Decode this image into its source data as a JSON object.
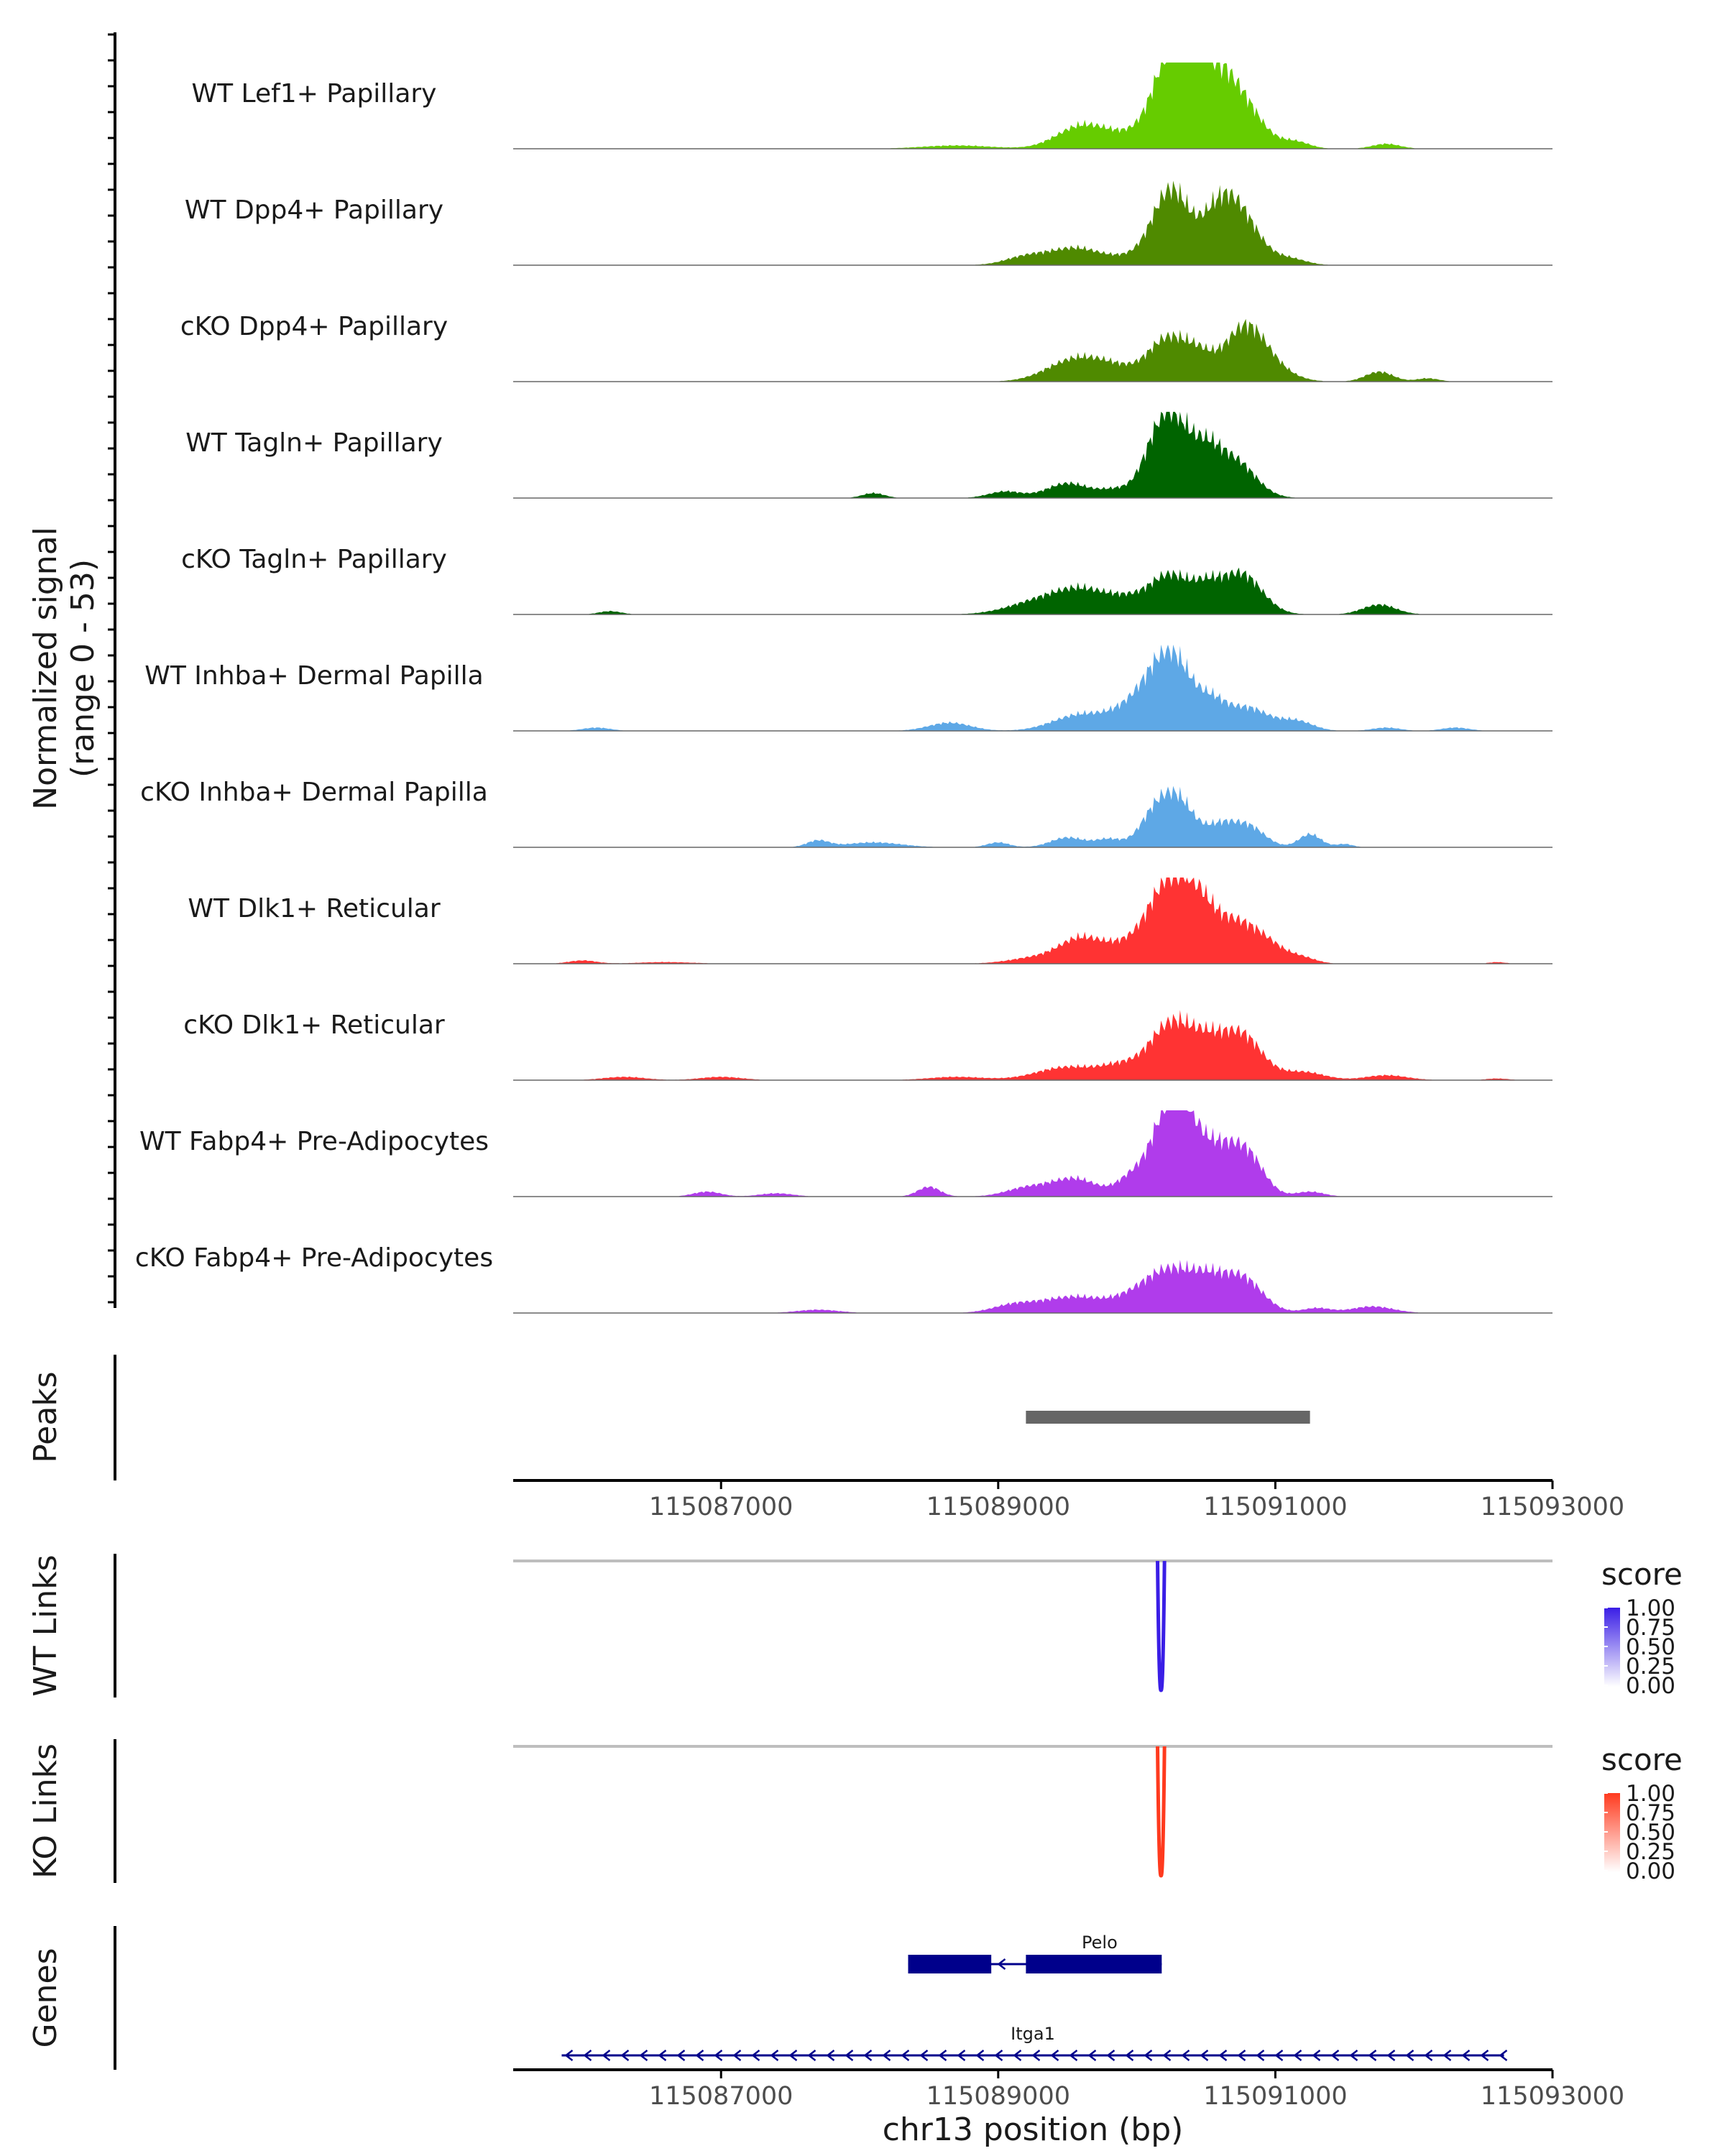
{
  "chart_data": {
    "type": "area",
    "title": "",
    "coverage_axis_label": "Normalized signal",
    "coverage_axis_range_label": "(range 0 - 53)",
    "ylim": [
      0,
      53
    ],
    "xlim": [
      115085500,
      115093000
    ],
    "xlabel": "chr13 position (bp)",
    "x_ticks": [
      115087000,
      115089000,
      115091000,
      115093000
    ],
    "tracks": [
      {
        "name": "WT Lef1+ Papillary",
        "color": "#66cc00",
        "peaks": [
          [
            115089600,
            13,
            180
          ],
          [
            115090050,
            9,
            250
          ],
          [
            115090260,
            52,
            130
          ],
          [
            115090400,
            22,
            100
          ],
          [
            115090700,
            35,
            170
          ],
          [
            115090550,
            20,
            110
          ],
          [
            115091150,
            4,
            100
          ],
          [
            115091800,
            3,
            100
          ],
          [
            115088700,
            2,
            250
          ]
        ]
      },
      {
        "name": "WT Dpp4+ Papillary",
        "color": "#4f8a00",
        "peaks": [
          [
            115089550,
            10,
            180
          ],
          [
            115089200,
            5,
            150
          ],
          [
            115090000,
            5,
            200
          ],
          [
            115090250,
            44,
            130
          ],
          [
            115090580,
            26,
            120
          ],
          [
            115090750,
            28,
            140
          ],
          [
            115091100,
            4,
            120
          ]
        ]
      },
      {
        "name": "cKO Dpp4+ Papillary",
        "color": "#4f8a00",
        "peaks": [
          [
            115089550,
            13,
            200
          ],
          [
            115089850,
            7,
            180
          ],
          [
            115090230,
            26,
            140
          ],
          [
            115090450,
            12,
            100
          ],
          [
            115090780,
            33,
            150
          ],
          [
            115091000,
            5,
            150
          ],
          [
            115091750,
            6,
            100
          ],
          [
            115092100,
            2,
            80
          ]
        ]
      },
      {
        "name": "WT Tagln+ Papillary",
        "color": "#006400",
        "peaks": [
          [
            115088100,
            3,
            80
          ],
          [
            115089050,
            4,
            120
          ],
          [
            115089500,
            9,
            150
          ],
          [
            115089850,
            5,
            120
          ],
          [
            115090250,
            50,
            130
          ],
          [
            115090500,
            20,
            100
          ],
          [
            115090700,
            23,
            150
          ],
          [
            115090100,
            10,
            100
          ]
        ]
      },
      {
        "name": "cKO Tagln+ Papillary",
        "color": "#006400",
        "peaks": [
          [
            115086200,
            2,
            80
          ],
          [
            115089300,
            8,
            220
          ],
          [
            115089600,
            12,
            180
          ],
          [
            115089950,
            9,
            180
          ],
          [
            115090250,
            22,
            140
          ],
          [
            115090500,
            12,
            100
          ],
          [
            115090750,
            25,
            150
          ],
          [
            115091750,
            6,
            120
          ]
        ]
      },
      {
        "name": "WT Inhba+ Dermal Papilla",
        "color": "#5ea8e6",
        "peaks": [
          [
            115086100,
            2,
            100
          ],
          [
            115088650,
            5,
            150
          ],
          [
            115089600,
            10,
            200
          ],
          [
            115090000,
            14,
            160
          ],
          [
            115090250,
            45,
            150
          ],
          [
            115090550,
            13,
            100
          ],
          [
            115090800,
            14,
            150
          ],
          [
            115091150,
            6,
            120
          ],
          [
            115091800,
            2,
            100
          ],
          [
            115092300,
            2,
            100
          ]
        ]
      },
      {
        "name": "cKO Inhba+ Dermal Papilla",
        "color": "#5ea8e6",
        "peaks": [
          [
            115087700,
            4,
            80
          ],
          [
            115088100,
            3,
            200
          ],
          [
            115089000,
            3,
            80
          ],
          [
            115089500,
            6,
            120
          ],
          [
            115089800,
            5,
            100
          ],
          [
            115090100,
            12,
            100
          ],
          [
            115090280,
            31,
            130
          ],
          [
            115090600,
            11,
            100
          ],
          [
            115090800,
            13,
            120
          ],
          [
            115091250,
            8,
            80
          ],
          [
            115091500,
            2,
            60
          ]
        ]
      },
      {
        "name": "WT Dlk1+ Reticular",
        "color": "#ff3333",
        "peaks": [
          [
            115086000,
            2,
            100
          ],
          [
            115086600,
            1,
            200
          ],
          [
            115089300,
            4,
            200
          ],
          [
            115089600,
            14,
            150
          ],
          [
            115089900,
            9,
            150
          ],
          [
            115090250,
            52,
            160
          ],
          [
            115090450,
            15,
            100
          ],
          [
            115090650,
            22,
            150
          ],
          [
            115090900,
            14,
            150
          ],
          [
            115091200,
            3,
            100
          ],
          [
            115092600,
            1,
            60
          ]
        ]
      },
      {
        "name": "cKO Dlk1+ Reticular",
        "color": "#ff3333",
        "peaks": [
          [
            115086300,
            2,
            150
          ],
          [
            115087000,
            2,
            150
          ],
          [
            115088700,
            2,
            200
          ],
          [
            115089500,
            8,
            220
          ],
          [
            115089900,
            8,
            150
          ],
          [
            115090250,
            34,
            150
          ],
          [
            115090500,
            16,
            120
          ],
          [
            115090750,
            28,
            150
          ],
          [
            115091200,
            5,
            150
          ],
          [
            115091800,
            3,
            150
          ],
          [
            115092600,
            1,
            80
          ]
        ]
      },
      {
        "name": "WT Fabp4+ Pre-Adipocytes",
        "color": "#b03ceb",
        "peaks": [
          [
            115086900,
            3,
            100
          ],
          [
            115087400,
            2,
            120
          ],
          [
            115088500,
            6,
            80
          ],
          [
            115089200,
            5,
            150
          ],
          [
            115089550,
            11,
            170
          ],
          [
            115089950,
            9,
            100
          ],
          [
            115090280,
            65,
            150
          ],
          [
            115090600,
            22,
            120
          ],
          [
            115090800,
            24,
            120
          ],
          [
            115091250,
            3,
            100
          ]
        ]
      },
      {
        "name": "cKO Fabp4+ Pre-Adipocytes",
        "color": "#b03ceb",
        "peaks": [
          [
            115087700,
            2,
            150
          ],
          [
            115089100,
            4,
            150
          ],
          [
            115089550,
            10,
            250
          ],
          [
            115090000,
            8,
            150
          ],
          [
            115090250,
            24,
            160
          ],
          [
            115090500,
            14,
            120
          ],
          [
            115090750,
            22,
            150
          ],
          [
            115091300,
            3,
            100
          ],
          [
            115091700,
            4,
            150
          ]
        ]
      }
    ],
    "peaks_track": {
      "label": "Peaks",
      "color": "#666666",
      "regions": [
        [
          115089200,
          115091250
        ]
      ]
    },
    "links": [
      {
        "label": "WT Links",
        "legend_title": "score",
        "color": "#3a1ee6",
        "legend_ticks": [
          "1.00",
          "0.75",
          "0.50",
          "0.25",
          "0.00"
        ],
        "arc": {
          "start": 115090150,
          "end": 115090200,
          "score": 1.0
        }
      },
      {
        "label": "KO Links",
        "legend_title": "score",
        "color": "#ff3a1e",
        "legend_ticks": [
          "1.00",
          "0.75",
          "0.50",
          "0.25",
          "0.00"
        ],
        "arc": {
          "start": 115090150,
          "end": 115090200,
          "score": 1.0
        }
      }
    ],
    "genes_track": {
      "label": "Genes",
      "genes": [
        {
          "name": "Pelo",
          "start": 115088350,
          "end": 115090180,
          "strand": "-",
          "exons": [
            [
              115088350,
              115088950
            ],
            [
              115089200,
              115090180
            ]
          ]
        },
        {
          "name": "Itga1",
          "start": 115085850,
          "end": 115092650,
          "strand": "-",
          "exons": []
        }
      ]
    }
  }
}
